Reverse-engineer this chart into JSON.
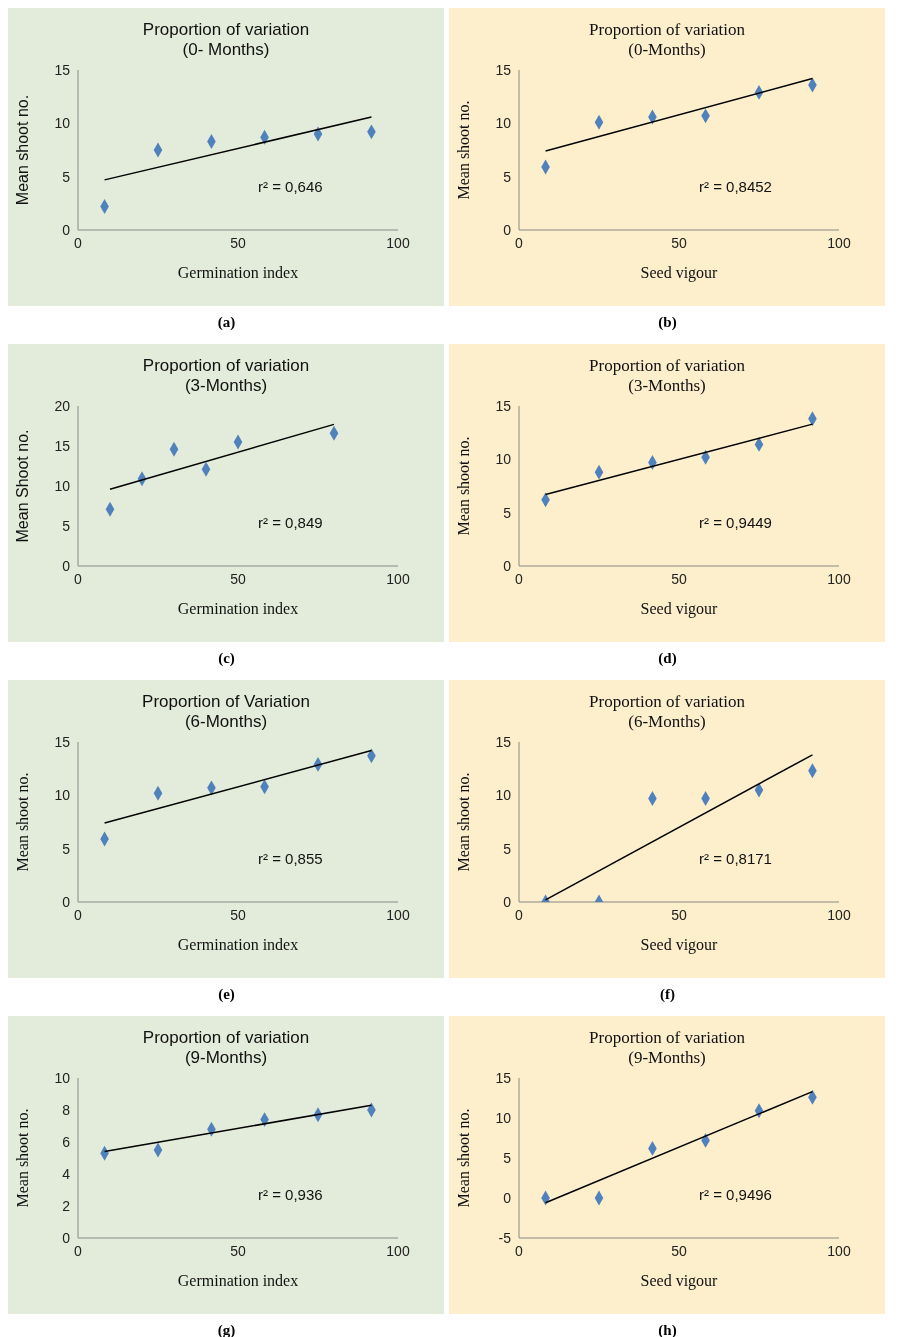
{
  "chart_data": [
    {
      "type": "scatter",
      "title": "Proportion of variation",
      "subtitle": "(0- Months)",
      "xlabel": "Germination index",
      "ylabel": "Mean shoot no.",
      "x": [
        8.3,
        25,
        41.7,
        58.3,
        75,
        91.7
      ],
      "xlim": [
        0,
        100
      ],
      "xticks": [
        0,
        50,
        100
      ],
      "ylim": [
        0,
        15
      ],
      "yticks": [
        0,
        5,
        10,
        15
      ],
      "marker": "diamond",
      "annotations": [
        "r² = 0,646",
        "(a)"
      ],
      "series": [
        {
          "color": "#4f81bd",
          "values": [
            2.2,
            7.5,
            8.3,
            8.7,
            9.0,
            9.2
          ]
        },
        {
          "type": "line",
          "color": "#000000",
          "marker": "none",
          "x": [
            8.3,
            91.7
          ],
          "values": [
            4.7,
            10.6
          ]
        }
      ]
    },
    {
      "type": "scatter",
      "title": "Proportion of variation",
      "subtitle": "(0-Months)",
      "xlabel": "Seed vigour",
      "ylabel": "Mean shoot no.",
      "x": [
        8.3,
        25,
        41.7,
        58.3,
        75,
        91.7
      ],
      "xlim": [
        0,
        100
      ],
      "xticks": [
        0,
        50,
        100
      ],
      "ylim": [
        0,
        15
      ],
      "yticks": [
        0,
        5,
        10,
        15
      ],
      "marker": "diamond",
      "annotations": [
        "r² = 0,8452",
        "(b)"
      ],
      "series": [
        {
          "color": "#4f81bd",
          "values": [
            5.9,
            10.1,
            10.6,
            10.7,
            12.9,
            13.6
          ]
        },
        {
          "type": "line",
          "color": "#000000",
          "marker": "none",
          "x": [
            8.3,
            91.7
          ],
          "values": [
            7.4,
            14.2
          ]
        }
      ]
    },
    {
      "type": "scatter",
      "title": "Proportion of variation",
      "subtitle": "(3-Months)",
      "xlabel": "Germination index",
      "ylabel": "Mean Shoot  no.",
      "x": [
        10,
        20,
        30,
        40,
        50,
        80
      ],
      "xlim": [
        0,
        100
      ],
      "xticks": [
        0,
        50,
        100
      ],
      "ylim": [
        0,
        20
      ],
      "yticks": [
        0,
        5,
        10,
        15,
        20
      ],
      "marker": "diamond",
      "annotations": [
        "r² = 0,849",
        "(c)"
      ],
      "series": [
        {
          "color": "#4f81bd",
          "values": [
            7.1,
            10.9,
            14.6,
            12.1,
            15.5,
            16.6
          ]
        },
        {
          "type": "line",
          "color": "#000000",
          "marker": "none",
          "x": [
            10,
            80
          ],
          "values": [
            9.6,
            17.7
          ]
        }
      ]
    },
    {
      "type": "scatter",
      "title": "Proportion of variation",
      "subtitle": "(3-Months)",
      "xlabel": "Seed vigour",
      "ylabel": "Mean shoot no.",
      "x": [
        8.3,
        25,
        41.7,
        58.3,
        75,
        91.7
      ],
      "xlim": [
        0,
        100
      ],
      "xticks": [
        0,
        50,
        100
      ],
      "ylim": [
        0,
        15
      ],
      "yticks": [
        0,
        5,
        10,
        15
      ],
      "marker": "diamond",
      "annotations": [
        "r² = 0,9449",
        "(d)"
      ],
      "series": [
        {
          "color": "#4f81bd",
          "values": [
            6.2,
            8.8,
            9.7,
            10.2,
            11.4,
            13.8
          ]
        },
        {
          "type": "line",
          "color": "#000000",
          "marker": "none",
          "x": [
            8.3,
            91.7
          ],
          "values": [
            6.7,
            13.3
          ]
        }
      ]
    },
    {
      "type": "scatter",
      "title": "Proportion of Variation",
      "subtitle": "(6-Months)",
      "xlabel": "Germination index",
      "ylabel": "Mean shoot no.",
      "x": [
        8.3,
        25,
        41.7,
        58.3,
        75,
        91.7
      ],
      "xlim": [
        0,
        100
      ],
      "xticks": [
        0,
        50,
        100
      ],
      "ylim": [
        0,
        15
      ],
      "yticks": [
        0,
        5,
        10,
        15
      ],
      "marker": "diamond",
      "annotations": [
        "r² = 0,855",
        "(e)"
      ],
      "series": [
        {
          "color": "#4f81bd",
          "values": [
            5.9,
            10.2,
            10.7,
            10.8,
            12.9,
            13.7
          ]
        },
        {
          "type": "line",
          "color": "#000000",
          "marker": "none",
          "x": [
            8.3,
            91.7
          ],
          "values": [
            7.4,
            14.2
          ]
        }
      ]
    },
    {
      "type": "scatter",
      "title": "Proportion of variation",
      "subtitle": "(6-Months)",
      "xlabel": "Seed vigour",
      "ylabel": "Mean shoot no.",
      "x": [
        8.3,
        25,
        41.7,
        58.3,
        75,
        91.7
      ],
      "xlim": [
        0,
        100
      ],
      "xticks": [
        0,
        50,
        100
      ],
      "ylim": [
        0,
        15
      ],
      "yticks": [
        0,
        5,
        10,
        15
      ],
      "marker": "diamond",
      "annotations": [
        "r² = 0,8171",
        "(f)"
      ],
      "series": [
        {
          "color": "#4f81bd",
          "values": [
            0,
            0,
            9.7,
            9.7,
            10.5,
            12.3
          ]
        },
        {
          "type": "line",
          "color": "#000000",
          "marker": "none",
          "x": [
            8.3,
            91.7
          ],
          "values": [
            0.2,
            13.8
          ]
        }
      ]
    },
    {
      "type": "scatter",
      "title": "Proportion of variation",
      "subtitle": "(9-Months)",
      "xlabel": "Germination index",
      "ylabel": "Mean shoot no.",
      "x": [
        8.3,
        25,
        41.7,
        58.3,
        75,
        91.7
      ],
      "xlim": [
        0,
        100
      ],
      "xticks": [
        0,
        50,
        100
      ],
      "ylim": [
        0,
        10
      ],
      "yticks": [
        0,
        2,
        4,
        6,
        8,
        10
      ],
      "marker": "diamond",
      "annotations": [
        "r² = 0,936",
        "(g)"
      ],
      "series": [
        {
          "color": "#4f81bd",
          "values": [
            5.3,
            5.5,
            6.8,
            7.4,
            7.7,
            8.0
          ]
        },
        {
          "type": "line",
          "color": "#000000",
          "marker": "none",
          "x": [
            8.3,
            91.7
          ],
          "values": [
            5.4,
            8.3
          ]
        }
      ]
    },
    {
      "type": "scatter",
      "title": "Proportion of variation",
      "subtitle": "(9-Months)",
      "xlabel": "Seed vigour",
      "ylabel": "Mean shoot no.",
      "x": [
        8.3,
        25,
        41.7,
        58.3,
        75,
        91.7
      ],
      "xlim": [
        0,
        100
      ],
      "xticks": [
        0,
        50,
        100
      ],
      "ylim": [
        -5,
        15
      ],
      "yticks": [
        -5,
        0,
        5,
        10,
        15
      ],
      "marker": "diamond",
      "annotations": [
        "r² = 0,9496",
        "(h)"
      ],
      "series": [
        {
          "color": "#4f81bd",
          "values": [
            0,
            0,
            6.2,
            7.2,
            10.9,
            12.6
          ]
        },
        {
          "type": "line",
          "color": "#000000",
          "marker": "none",
          "x": [
            8.3,
            91.7
          ],
          "values": [
            -0.6,
            13.3
          ]
        }
      ]
    }
  ]
}
